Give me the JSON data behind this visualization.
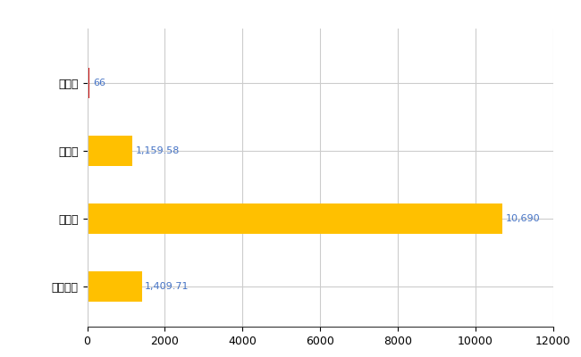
{
  "categories": [
    "全国平均",
    "県最大",
    "県平均",
    "木城町"
  ],
  "values": [
    1409.71,
    10690,
    1159.58,
    66
  ],
  "bar_colors": [
    "#FFC000",
    "#FFC000",
    "#FFC000",
    "#CC0000"
  ],
  "label_texts": [
    "1,409.71",
    "10,690",
    "1,159.58",
    "66"
  ],
  "label_color": "#4472C4",
  "xlim": [
    0,
    12000
  ],
  "xticks": [
    0,
    2000,
    4000,
    6000,
    8000,
    10000,
    12000
  ],
  "bar_height": 0.45,
  "grid_color": "#CCCCCC",
  "background_color": "#FFFFFF",
  "label_fontsize": 8,
  "tick_fontsize": 9,
  "ytick_fontsize": 9
}
